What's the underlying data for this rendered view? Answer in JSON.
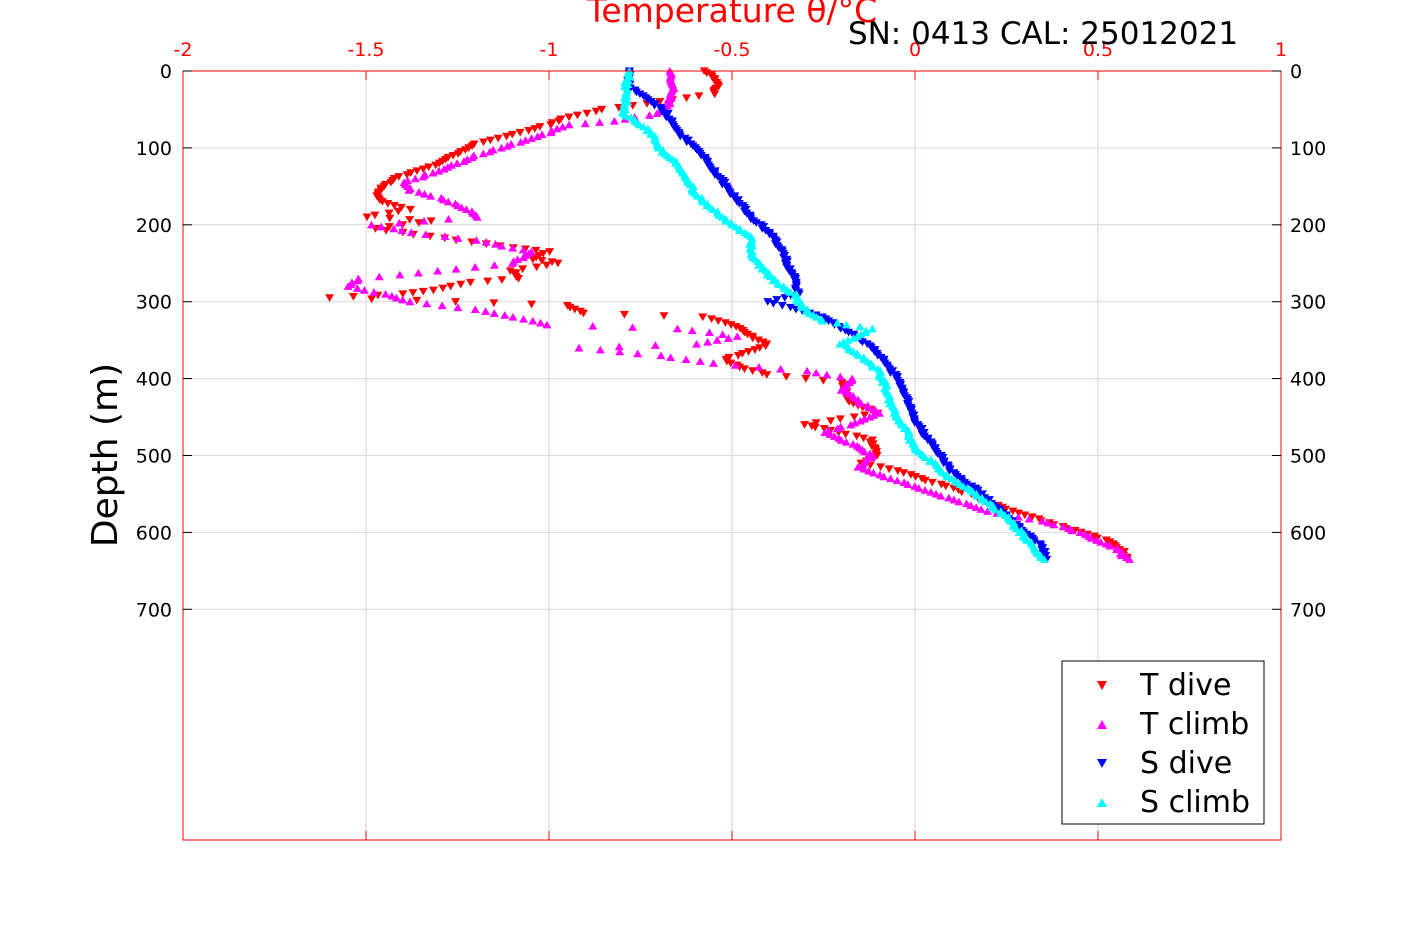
{
  "chart_data": {
    "type": "scatter",
    "title": "SN: 0413  CAL: 25012021",
    "xlabel": "Temperature θ/°C",
    "ylabel": "Depth (m)",
    "xlim": [
      -2,
      1
    ],
    "ylim": [
      0,
      1000
    ],
    "y_reversed": true,
    "x_axis_position": "top",
    "x_tick_values": [
      -2,
      -1.5,
      -1,
      -0.5,
      0,
      0.5,
      1
    ],
    "x_tick_labels": [
      "-2",
      "-1.5",
      "-1",
      "-0.5",
      "0",
      "0.5",
      "1"
    ],
    "y_tick_values": [
      0,
      100,
      200,
      300,
      400,
      500,
      600,
      700
    ],
    "y_tick_labels": [
      "0",
      "100",
      "200",
      "300",
      "400",
      "500",
      "600",
      "700"
    ],
    "grid": true,
    "legend_position": "bottom-right",
    "colors": {
      "axis": "#ff0000",
      "grid": "#d9d9d9",
      "text": "#000000"
    },
    "series": [
      {
        "name": "T dive",
        "marker": "triangle-down",
        "color": "#ff0000",
        "points": [
          [
            -0.57,
            0
          ],
          [
            -0.55,
            10
          ],
          [
            -0.54,
            20
          ],
          [
            -0.55,
            30
          ],
          [
            -0.85,
            50
          ],
          [
            -0.95,
            60
          ],
          [
            -1.0,
            70
          ],
          [
            -1.2,
            95
          ],
          [
            -1.3,
            120
          ],
          [
            -1.42,
            140
          ],
          [
            -1.45,
            150
          ],
          [
            -1.47,
            160
          ],
          [
            -1.46,
            170
          ],
          [
            -1.38,
            180
          ],
          [
            -1.5,
            190
          ],
          [
            -1.32,
            195
          ],
          [
            -1.48,
            205
          ],
          [
            -1.1,
            230
          ],
          [
            -1.0,
            235
          ],
          [
            -1.05,
            245
          ],
          [
            -0.97,
            250
          ],
          [
            -1.1,
            260
          ],
          [
            -1.08,
            270
          ],
          [
            -1.22,
            275
          ],
          [
            -1.32,
            285
          ],
          [
            -1.4,
            290
          ],
          [
            -1.6,
            295
          ],
          [
            -1.25,
            300
          ],
          [
            -0.95,
            305
          ],
          [
            -0.9,
            315
          ],
          [
            -0.58,
            320
          ],
          [
            -0.5,
            330
          ],
          [
            -0.45,
            345
          ],
          [
            -0.4,
            355
          ],
          [
            -0.45,
            365
          ],
          [
            -0.52,
            375
          ],
          [
            -0.48,
            385
          ],
          [
            -0.4,
            395
          ],
          [
            -0.2,
            405
          ],
          [
            -0.18,
            430
          ],
          [
            -0.1,
            445
          ],
          [
            -0.3,
            460
          ],
          [
            -0.25,
            465
          ],
          [
            -0.12,
            480
          ],
          [
            -0.1,
            500
          ],
          [
            -0.15,
            510
          ],
          [
            -0.05,
            520
          ],
          [
            0.05,
            535
          ],
          [
            0.15,
            550
          ],
          [
            0.25,
            570
          ],
          [
            0.35,
            585
          ],
          [
            0.45,
            600
          ],
          [
            0.52,
            610
          ],
          [
            0.57,
            625
          ],
          [
            0.58,
            635
          ]
        ]
      },
      {
        "name": "T climb",
        "marker": "triangle-up",
        "color": "#ff00ff",
        "points": [
          [
            0.58,
            635
          ],
          [
            0.55,
            620
          ],
          [
            0.45,
            600
          ],
          [
            0.35,
            585
          ],
          [
            0.22,
            575
          ],
          [
            0.12,
            560
          ],
          [
            0.0,
            540
          ],
          [
            -0.1,
            525
          ],
          [
            -0.15,
            515
          ],
          [
            -0.12,
            500
          ],
          [
            -0.15,
            490
          ],
          [
            -0.2,
            480
          ],
          [
            -0.25,
            470
          ],
          [
            -0.18,
            460
          ],
          [
            -0.1,
            445
          ],
          [
            -0.15,
            430
          ],
          [
            -0.2,
            415
          ],
          [
            -0.17,
            400
          ],
          [
            -0.3,
            390
          ],
          [
            -0.55,
            380
          ],
          [
            -0.7,
            370
          ],
          [
            -0.92,
            360
          ],
          [
            -0.6,
            355
          ],
          [
            -0.48,
            345
          ],
          [
            -0.65,
            335
          ],
          [
            -1.0,
            330
          ],
          [
            -1.1,
            320
          ],
          [
            -1.2,
            310
          ],
          [
            -1.38,
            300
          ],
          [
            -1.45,
            290
          ],
          [
            -1.55,
            280
          ],
          [
            -1.52,
            270
          ],
          [
            -1.3,
            260
          ],
          [
            -1.1,
            250
          ],
          [
            -1.05,
            235
          ],
          [
            -1.2,
            220
          ],
          [
            -1.38,
            210
          ],
          [
            -1.48,
            200
          ],
          [
            -1.2,
            190
          ],
          [
            -1.22,
            180
          ],
          [
            -1.3,
            165
          ],
          [
            -1.38,
            155
          ],
          [
            -1.4,
            145
          ],
          [
            -1.3,
            130
          ],
          [
            -1.2,
            110
          ],
          [
            -1.1,
            95
          ],
          [
            -1.0,
            80
          ],
          [
            -0.95,
            70
          ],
          [
            -0.82,
            65
          ],
          [
            -0.7,
            55
          ],
          [
            -0.67,
            40
          ],
          [
            -0.66,
            20
          ],
          [
            -0.67,
            0
          ]
        ]
      },
      {
        "name": "S dive",
        "marker": "triangle-down",
        "color": "#0000ff",
        "points": [
          [
            -0.78,
            0
          ],
          [
            -0.78,
            20
          ],
          [
            -0.72,
            40
          ],
          [
            -0.68,
            55
          ],
          [
            -0.65,
            80
          ],
          [
            -0.6,
            100
          ],
          [
            -0.55,
            130
          ],
          [
            -0.5,
            160
          ],
          [
            -0.45,
            190
          ],
          [
            -0.4,
            210
          ],
          [
            -0.37,
            230
          ],
          [
            -0.35,
            250
          ],
          [
            -0.33,
            270
          ],
          [
            -0.32,
            290
          ],
          [
            -0.4,
            300
          ],
          [
            -0.25,
            320
          ],
          [
            -0.18,
            340
          ],
          [
            -0.12,
            360
          ],
          [
            -0.08,
            380
          ],
          [
            -0.05,
            400
          ],
          [
            -0.03,
            420
          ],
          [
            0.0,
            455
          ],
          [
            0.05,
            490
          ],
          [
            0.1,
            520
          ],
          [
            0.18,
            550
          ],
          [
            0.25,
            580
          ],
          [
            0.3,
            600
          ],
          [
            0.35,
            620
          ],
          [
            0.36,
            635
          ]
        ]
      },
      {
        "name": "S climb",
        "marker": "triangle-up",
        "color": "#00ffff",
        "points": [
          [
            0.35,
            635
          ],
          [
            0.32,
            615
          ],
          [
            0.25,
            580
          ],
          [
            0.18,
            555
          ],
          [
            0.1,
            530
          ],
          [
            0.05,
            510
          ],
          [
            0.0,
            490
          ],
          [
            -0.02,
            470
          ],
          [
            -0.05,
            450
          ],
          [
            -0.07,
            430
          ],
          [
            -0.08,
            410
          ],
          [
            -0.1,
            390
          ],
          [
            -0.15,
            370
          ],
          [
            -0.2,
            355
          ],
          [
            -0.12,
            335
          ],
          [
            -0.25,
            325
          ],
          [
            -0.3,
            310
          ],
          [
            -0.33,
            290
          ],
          [
            -0.38,
            275
          ],
          [
            -0.42,
            255
          ],
          [
            -0.45,
            235
          ],
          [
            -0.45,
            215
          ],
          [
            -0.5,
            200
          ],
          [
            -0.55,
            180
          ],
          [
            -0.6,
            160
          ],
          [
            -0.62,
            140
          ],
          [
            -0.65,
            120
          ],
          [
            -0.7,
            100
          ],
          [
            -0.72,
            80
          ],
          [
            -0.78,
            60
          ],
          [
            -0.8,
            55
          ],
          [
            -0.79,
            40
          ],
          [
            -0.79,
            20
          ],
          [
            -0.78,
            0
          ]
        ]
      }
    ]
  }
}
